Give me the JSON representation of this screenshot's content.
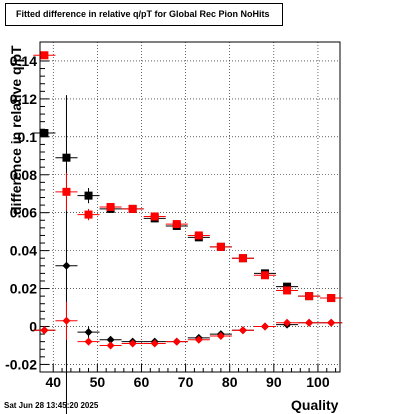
{
  "page": {
    "timestamp": "Sat Jun 28 13:45:20 2025"
  },
  "chart_data": {
    "type": "scatter",
    "title": "Fitted difference in relative q/pT for Global Rec Pion NoHits",
    "xlabel": "Quality",
    "ylabel": "difference in relative q/pT",
    "xlim": [
      37,
      105
    ],
    "ylim": [
      -0.024,
      0.15
    ],
    "xticks": [
      "40",
      "50",
      "60",
      "70",
      "80",
      "90",
      "100"
    ],
    "yticks": [
      "-0.02",
      "0",
      "0.02",
      "0.04",
      "0.06",
      "0.08",
      "0.1",
      "0.12",
      "0.14"
    ],
    "grid": true,
    "series": [
      {
        "color": "#000000",
        "marker": "square",
        "points": [
          {
            "x": 38,
            "y": 0.102,
            "err": 0
          },
          {
            "x": 43,
            "y": 0.089,
            "err": 0
          },
          {
            "x": 48,
            "y": 0.069,
            "err": 0.004
          },
          {
            "x": 53,
            "y": 0.062,
            "err": 0.002
          },
          {
            "x": 58,
            "y": 0.062,
            "err": 0.002
          },
          {
            "x": 63,
            "y": 0.057,
            "err": 0.001
          },
          {
            "x": 68,
            "y": 0.053,
            "err": 0.001
          },
          {
            "x": 73,
            "y": 0.047,
            "err": 0.001
          },
          {
            "x": 78,
            "y": 0.042,
            "err": 0.001
          },
          {
            "x": 83,
            "y": 0.036,
            "err": 0.001
          },
          {
            "x": 88,
            "y": 0.028,
            "err": 0.001
          },
          {
            "x": 93,
            "y": 0.021,
            "err": 0.001
          },
          {
            "x": 98,
            "y": 0.016,
            "err": 0.001
          },
          {
            "x": 103,
            "y": 0.015,
            "err": 0.001
          }
        ]
      },
      {
        "color": "#000000",
        "marker": "diamond",
        "points": [
          {
            "x": 38,
            "y": -0.002,
            "err": 0
          },
          {
            "x": 43,
            "y": 0.032,
            "err": 0.09
          },
          {
            "x": 48,
            "y": -0.003,
            "err": 0.003
          },
          {
            "x": 53,
            "y": -0.007,
            "err": 0.001
          },
          {
            "x": 58,
            "y": -0.008,
            "err": 0.001
          },
          {
            "x": 63,
            "y": -0.008,
            "err": 0.001
          },
          {
            "x": 68,
            "y": -0.008,
            "err": 0.001
          },
          {
            "x": 73,
            "y": -0.006,
            "err": 0.001
          },
          {
            "x": 78,
            "y": -0.004,
            "err": 0.001
          },
          {
            "x": 83,
            "y": -0.002,
            "err": 0.001
          },
          {
            "x": 88,
            "y": 0.0,
            "err": 0.001
          },
          {
            "x": 93,
            "y": 0.001,
            "err": 0.001
          },
          {
            "x": 98,
            "y": 0.002,
            "err": 0.001
          },
          {
            "x": 103,
            "y": 0.002,
            "err": 0.001
          }
        ]
      },
      {
        "color": "#ff0000",
        "marker": "square",
        "points": [
          {
            "x": 38,
            "y": 0.143,
            "err": 0
          },
          {
            "x": 43,
            "y": 0.071,
            "err": 0.01
          },
          {
            "x": 48,
            "y": 0.059,
            "err": 0.003
          },
          {
            "x": 53,
            "y": 0.063,
            "err": 0.002
          },
          {
            "x": 58,
            "y": 0.062,
            "err": 0.002
          },
          {
            "x": 63,
            "y": 0.058,
            "err": 0.001
          },
          {
            "x": 68,
            "y": 0.054,
            "err": 0.001
          },
          {
            "x": 73,
            "y": 0.048,
            "err": 0.001
          },
          {
            "x": 78,
            "y": 0.042,
            "err": 0.001
          },
          {
            "x": 83,
            "y": 0.036,
            "err": 0.001
          },
          {
            "x": 88,
            "y": 0.027,
            "err": 0.001
          },
          {
            "x": 93,
            "y": 0.019,
            "err": 0.001
          },
          {
            "x": 98,
            "y": 0.016,
            "err": 0.001
          },
          {
            "x": 103,
            "y": 0.015,
            "err": 0.001
          }
        ]
      },
      {
        "color": "#ff0000",
        "marker": "diamond",
        "points": [
          {
            "x": 38,
            "y": -0.002,
            "err": 0.002
          },
          {
            "x": 43,
            "y": 0.003,
            "err": 0.01
          },
          {
            "x": 48,
            "y": -0.008,
            "err": 0.002
          },
          {
            "x": 53,
            "y": -0.01,
            "err": 0.001
          },
          {
            "x": 58,
            "y": -0.009,
            "err": 0.001
          },
          {
            "x": 63,
            "y": -0.009,
            "err": 0.001
          },
          {
            "x": 68,
            "y": -0.008,
            "err": 0.001
          },
          {
            "x": 73,
            "y": -0.007,
            "err": 0.001
          },
          {
            "x": 78,
            "y": -0.005,
            "err": 0.001
          },
          {
            "x": 83,
            "y": -0.002,
            "err": 0.001
          },
          {
            "x": 88,
            "y": 0.0,
            "err": 0.001
          },
          {
            "x": 93,
            "y": 0.002,
            "err": 0.001
          },
          {
            "x": 98,
            "y": 0.002,
            "err": 0.001
          },
          {
            "x": 103,
            "y": 0.002,
            "err": 0.001
          }
        ]
      }
    ]
  }
}
